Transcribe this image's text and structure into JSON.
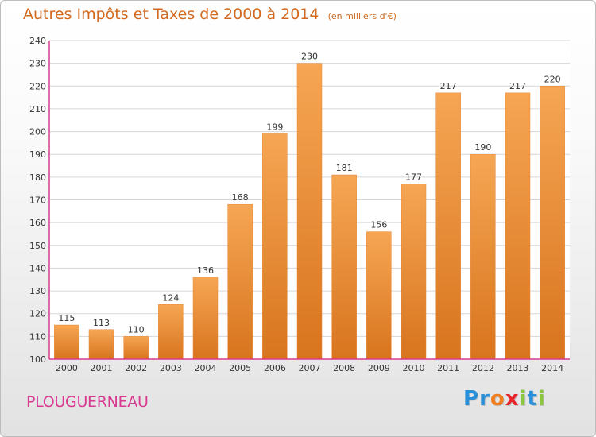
{
  "chart_data": {
    "type": "bar",
    "title": "Autres Impôts et Taxes de 2000 à 2014",
    "subtitle": "(en milliers d'€)",
    "categories": [
      "2000",
      "2001",
      "2002",
      "2003",
      "2004",
      "2005",
      "2006",
      "2007",
      "2008",
      "2009",
      "2010",
      "2011",
      "2012",
      "2013",
      "2014"
    ],
    "values": [
      115,
      113,
      110,
      124,
      136,
      168,
      199,
      230,
      181,
      156,
      177,
      217,
      190,
      217,
      220
    ],
    "ylim": [
      100,
      240
    ],
    "yticks": [
      "100",
      "110",
      "120",
      "130",
      "140",
      "150",
      "160",
      "170",
      "180",
      "190",
      "200",
      "210",
      "220",
      "230",
      "240"
    ],
    "grid": true,
    "xlabel": "",
    "ylabel": ""
  },
  "place": "PLOUGUERNEAU",
  "brand": {
    "letters": [
      "P",
      "r",
      "o",
      "x",
      "i",
      "t",
      "i"
    ],
    "colors": [
      "#2a8fd6",
      "#2a8fd6",
      "#f07d1e",
      "#e8242b",
      "#8cc63f",
      "#2a8fd6",
      "#8cc63f"
    ]
  },
  "colors": {
    "bar_light": "#f6a654",
    "bar_dark": "#d8741e",
    "title": "#d2691e",
    "place": "#d93a91",
    "grid": "#d6d6d6",
    "axis": "#d93a91"
  }
}
